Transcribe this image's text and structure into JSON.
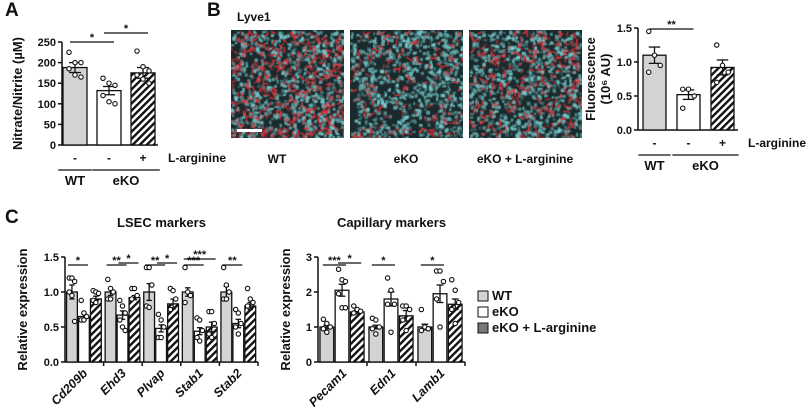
{
  "panel_labels": {
    "a": "A",
    "b": "B",
    "c": "C"
  },
  "image_panel": {
    "stain": "Lyve1",
    "captions": [
      "WT",
      "eKO",
      "eKO + L-arginine"
    ]
  },
  "colors": {
    "wt": "#d3d3d3",
    "eko": "#ffffff",
    "larg_hatch": "#111111",
    "image_bg": "#1a2a2c",
    "red": "#e0303a",
    "cyan": "#7fd6d8"
  },
  "chart_data": [
    {
      "id": "A",
      "type": "bar",
      "ylabel": "Nitrate/Nitrite (µM)",
      "ylim": [
        0,
        250
      ],
      "yticks": [
        0,
        50,
        100,
        150,
        200,
        250
      ],
      "categories": [
        "WT",
        "eKO",
        "eKO + L-arginine"
      ],
      "treatment_row": {
        "label": "L-arginine",
        "signs": [
          "-",
          "-",
          "+"
        ]
      },
      "genotype_row": [
        "WT",
        "eKO"
      ],
      "series": [
        {
          "name": "WT",
          "mean": 188,
          "sem": 12,
          "points": [
            225,
            200,
            200,
            185,
            170,
            165
          ]
        },
        {
          "name": "eKO",
          "mean": 132,
          "sem": 10,
          "points": [
            162,
            150,
            145,
            120,
            105,
            100
          ]
        },
        {
          "name": "eKO + L-arginine",
          "mean": 175,
          "sem": 13,
          "points": [
            228,
            190,
            180,
            170,
            160,
            150
          ]
        }
      ],
      "significance": [
        {
          "from": 0,
          "to": 1,
          "label": "*"
        },
        {
          "from": 1,
          "to": 2,
          "label": "*"
        }
      ]
    },
    {
      "id": "B",
      "type": "bar",
      "ylabel": "Fluorescence",
      "ylabel2": "(10⁶ AU)",
      "ylim": [
        0,
        1.5
      ],
      "yticks": [
        "0.0",
        "0.5",
        "1.0",
        "1.5"
      ],
      "categories": [
        "WT",
        "eKO",
        "eKO + L-arginine"
      ],
      "treatment_row": {
        "label": "L-arginine",
        "signs": [
          "-",
          "-",
          "+"
        ]
      },
      "genotype_row": [
        "WT",
        "eKO"
      ],
      "series": [
        {
          "name": "WT",
          "mean": 1.1,
          "sem": 0.12,
          "points": [
            1.45,
            1.1,
            0.95,
            0.85
          ]
        },
        {
          "name": "eKO",
          "mean": 0.52,
          "sem": 0.07,
          "points": [
            0.6,
            0.6,
            0.5,
            0.32
          ]
        },
        {
          "name": "eKO + L-arginine",
          "mean": 0.92,
          "sem": 0.11,
          "points": [
            1.25,
            0.95,
            0.85,
            0.7
          ]
        }
      ],
      "significance": [
        {
          "from": 0,
          "to": 1,
          "label": "**"
        }
      ]
    },
    {
      "id": "C1",
      "type": "bar",
      "title": "LSEC markers",
      "ylabel": "Relative expression",
      "ylim": [
        0,
        1.5
      ],
      "yticks": [
        "0.0",
        "0.5",
        "1.0",
        "1.5"
      ],
      "categories": [
        "Cd209b",
        "Ehd3",
        "Plvap",
        "Stab1",
        "Stab2"
      ],
      "groups": [
        {
          "means": [
            1.0,
            0.65,
            0.9
          ],
          "sems": [
            0.1,
            0.05,
            0.04
          ],
          "points": [
            [
              1.2,
              1.2,
              1.15,
              1.0,
              0.95,
              0.58
            ],
            [
              0.88,
              0.7,
              0.65,
              0.6,
              0.6
            ],
            [
              1.02,
              1.0,
              0.98,
              0.88,
              0.85
            ]
          ],
          "sig": [
            {
              "from": 0,
              "to": 1,
              "label": "*"
            }
          ]
        },
        {
          "means": [
            1.0,
            0.67,
            0.92
          ],
          "sems": [
            0.05,
            0.06,
            0.03
          ],
          "points": [
            [
              1.18,
              1.05,
              1.0,
              0.9,
              0.9
            ],
            [
              0.88,
              0.8,
              0.7,
              0.6,
              0.5,
              0.45
            ],
            [
              1.05,
              1.05,
              0.95,
              0.9
            ]
          ],
          "sig": [
            {
              "from": 0,
              "to": 1,
              "label": "**"
            },
            {
              "from": 1,
              "to": 2,
              "label": "*"
            }
          ]
        },
        {
          "means": [
            1.0,
            0.48,
            0.83
          ],
          "sems": [
            0.12,
            0.05,
            0.07
          ],
          "points": [
            [
              1.35,
              1.35,
              1.1,
              0.8,
              0.78
            ],
            [
              0.68,
              0.6,
              0.5,
              0.35,
              0.35
            ],
            [
              1.05,
              1.02,
              0.9,
              0.75
            ]
          ],
          "sig": [
            {
              "from": 0,
              "to": 1,
              "label": "**"
            },
            {
              "from": 1,
              "to": 2,
              "label": "*"
            }
          ]
        },
        {
          "means": [
            1.0,
            0.44,
            0.5
          ],
          "sems": [
            0.06,
            0.05,
            0.07
          ],
          "points": [
            [
              1.35,
              1.0,
              0.95,
              0.85
            ],
            [
              0.63,
              0.6,
              0.45,
              0.35,
              0.3
            ],
            [
              0.72,
              0.72,
              0.55,
              0.4,
              0.35
            ]
          ],
          "sig": [
            {
              "from": 0,
              "to": 1,
              "label": "***"
            },
            {
              "from": 0,
              "to": 2,
              "label": "***"
            }
          ]
        },
        {
          "means": [
            1.0,
            0.55,
            0.8
          ],
          "sems": [
            0.08,
            0.06,
            0.05
          ],
          "points": [
            [
              1.35,
              1.1,
              1.0,
              0.9,
              0.9
            ],
            [
              0.75,
              0.7,
              0.55,
              0.5,
              0.4
            ],
            [
              1.05,
              0.9,
              0.85,
              0.8
            ]
          ],
          "sig": [
            {
              "from": 0,
              "to": 1,
              "label": "**"
            }
          ]
        }
      ]
    },
    {
      "id": "C2",
      "type": "bar",
      "title": "Capillary markers",
      "ylabel": "Relative expression",
      "ylim": [
        0,
        3
      ],
      "yticks": [
        "0",
        "1",
        "2",
        "3"
      ],
      "categories": [
        "Pecam1",
        "Edn1",
        "Lamb1"
      ],
      "groups": [
        {
          "means": [
            1.0,
            2.05,
            1.43
          ],
          "sems": [
            0.05,
            0.17,
            0.05
          ],
          "points": [
            [
              1.22,
              1.1,
              1.0,
              0.95,
              0.85
            ],
            [
              2.65,
              2.35,
              2.3,
              1.95,
              1.55,
              1.55
            ],
            [
              1.6,
              1.5,
              1.45,
              1.4
            ]
          ],
          "sig": [
            {
              "from": 0,
              "to": 1,
              "label": "***"
            },
            {
              "from": 1,
              "to": 2,
              "label": "*"
            }
          ]
        },
        {
          "means": [
            1.0,
            1.8,
            1.32
          ],
          "sems": [
            0.05,
            0.2,
            0.15
          ],
          "points": [
            [
              1.25,
              1.2,
              1.0,
              0.95,
              0.8
            ],
            [
              2.4,
              2.05,
              1.65,
              1.65,
              0.85
            ],
            [
              1.6,
              1.6,
              1.5,
              1.2,
              0.9
            ]
          ],
          "sig": [
            {
              "from": 0,
              "to": 1,
              "label": "*"
            }
          ]
        },
        {
          "means": [
            1.0,
            1.95,
            1.65
          ],
          "sems": [
            0.08,
            0.25,
            0.15
          ],
          "points": [
            [
              1.5,
              1.0,
              0.95,
              0.9
            ],
            [
              2.6,
              2.6,
              2.3,
              1.8,
              1.0
            ],
            [
              2.35,
              2.05,
              1.7,
              1.5,
              1.1
            ]
          ],
          "sig": [
            {
              "from": 0,
              "to": 1,
              "label": "*"
            }
          ]
        }
      ],
      "legend": {
        "position": "right",
        "entries": [
          "WT",
          "eKO",
          "eKO + L-arginine"
        ]
      }
    }
  ]
}
